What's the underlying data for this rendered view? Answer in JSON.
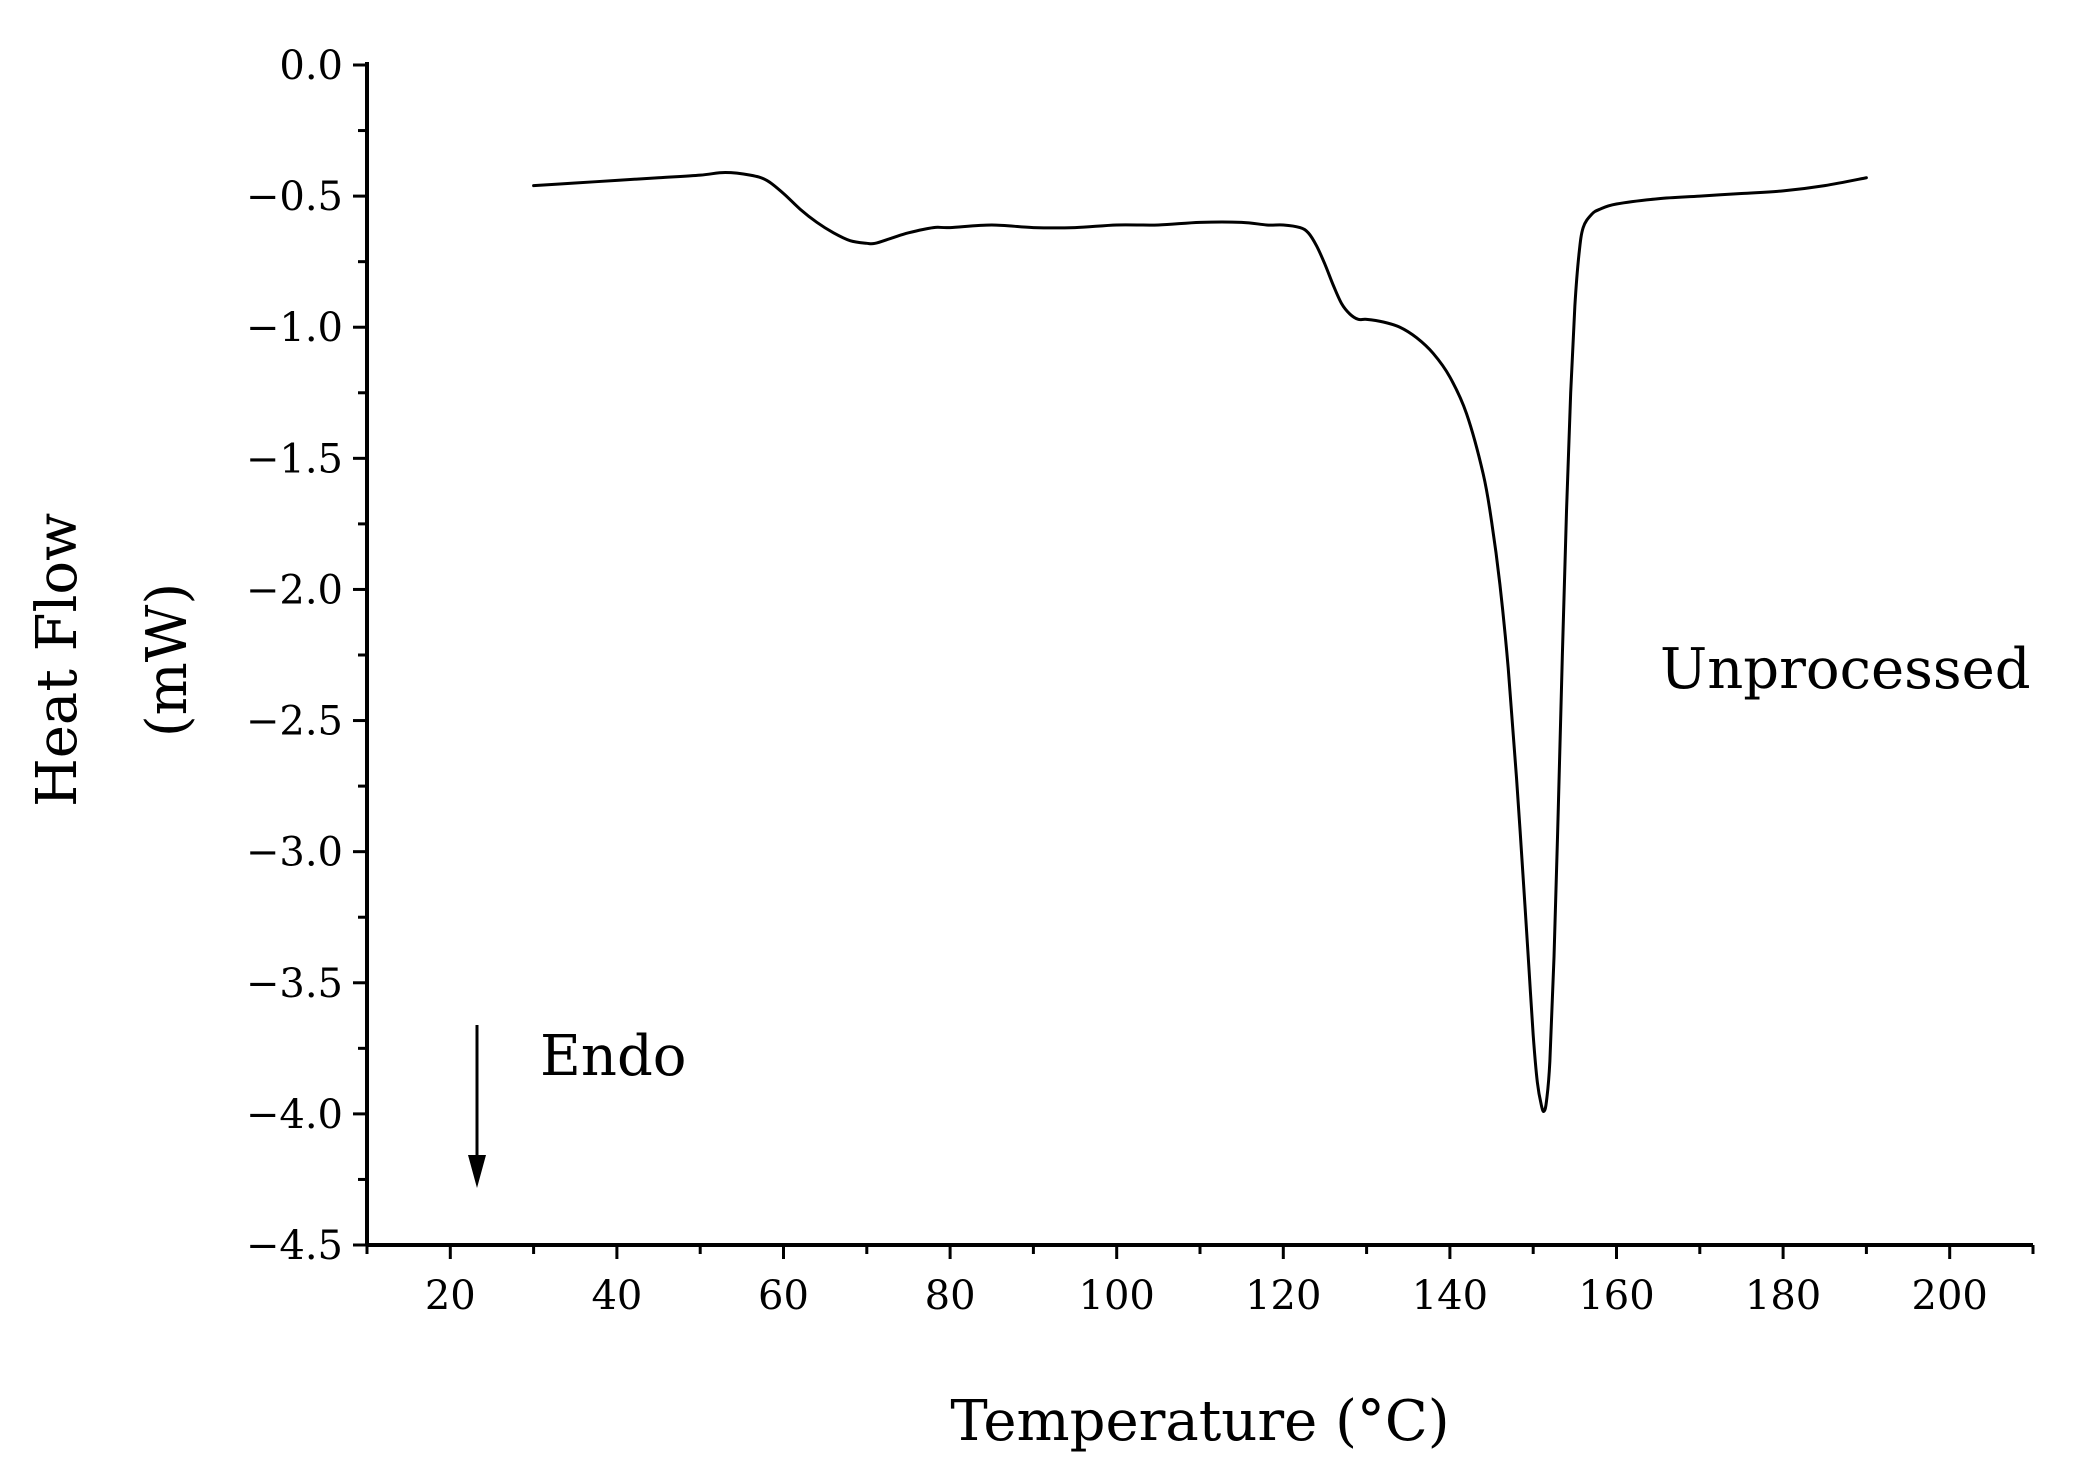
{
  "chart_data": {
    "type": "line",
    "xlabel": "Temperature (°C)",
    "ylabel_line1": "Heat Flow",
    "ylabel_line2": "(mW)",
    "xlim": [
      10,
      210
    ],
    "ylim": [
      -4.5,
      0.0
    ],
    "x_ticks": [
      20,
      40,
      60,
      80,
      100,
      120,
      140,
      160,
      180,
      200
    ],
    "x_tick_labels": [
      "20",
      "40",
      "60",
      "80",
      "100",
      "120",
      "140",
      "160",
      "180",
      "200"
    ],
    "y_ticks": [
      0.0,
      -0.5,
      -1.0,
      -1.5,
      -2.0,
      -2.5,
      -3.0,
      -3.5,
      -4.0,
      -4.5
    ],
    "y_tick_labels": [
      "0.0",
      "−0.5",
      "−1.0",
      "−1.5",
      "−2.0",
      "−2.5",
      "−3.0",
      "−3.5",
      "−4.0",
      "−4.5"
    ],
    "grid": false,
    "annotations": {
      "series_label": "Unprocessed",
      "direction_label": "Endo"
    },
    "series": [
      {
        "name": "Unprocessed",
        "color": "#000000",
        "x": [
          30,
          35,
          40,
          45,
          50,
          53,
          56,
          58,
          60,
          62,
          64,
          66,
          68,
          70,
          71,
          73,
          75,
          78,
          80,
          85,
          90,
          95,
          100,
          105,
          110,
          115,
          118,
          120,
          122,
          123,
          124,
          125,
          126,
          127,
          128,
          129,
          130,
          132,
          134,
          136,
          138,
          140,
          142,
          144,
          145,
          146,
          147,
          148,
          149,
          149.5,
          150,
          150.5,
          151,
          151.3,
          151.6,
          152,
          152.5,
          153,
          153.5,
          154,
          154.5,
          155,
          155.5,
          156,
          157,
          158,
          160,
          165,
          170,
          175,
          180,
          185,
          190
        ],
        "y": [
          -0.46,
          -0.45,
          -0.44,
          -0.43,
          -0.42,
          -0.41,
          -0.42,
          -0.44,
          -0.49,
          -0.55,
          -0.6,
          -0.64,
          -0.67,
          -0.68,
          -0.68,
          -0.66,
          -0.64,
          -0.62,
          -0.62,
          -0.61,
          -0.62,
          -0.62,
          -0.61,
          -0.61,
          -0.6,
          -0.6,
          -0.61,
          -0.61,
          -0.62,
          -0.64,
          -0.69,
          -0.76,
          -0.84,
          -0.91,
          -0.95,
          -0.97,
          -0.97,
          -0.98,
          -1.0,
          -1.04,
          -1.1,
          -1.19,
          -1.33,
          -1.56,
          -1.74,
          -1.98,
          -2.3,
          -2.72,
          -3.2,
          -3.45,
          -3.7,
          -3.88,
          -3.97,
          -3.99,
          -3.95,
          -3.8,
          -3.4,
          -2.85,
          -2.25,
          -1.7,
          -1.25,
          -0.92,
          -0.72,
          -0.62,
          -0.57,
          -0.55,
          -0.53,
          -0.51,
          -0.5,
          -0.49,
          -0.48,
          -0.46,
          -0.43
        ]
      }
    ]
  }
}
